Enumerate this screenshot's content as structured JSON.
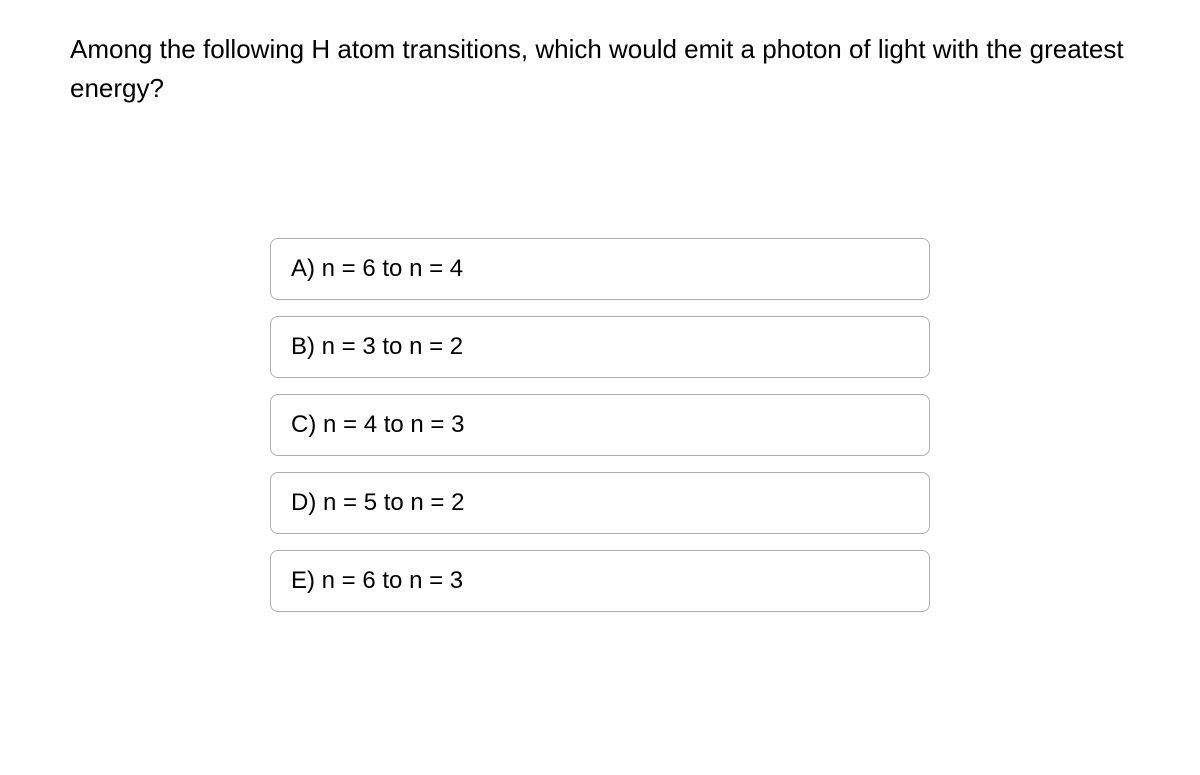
{
  "question": {
    "text": "Among the following H atom transitions, which would emit a photon of light with the greatest energy?"
  },
  "options": {
    "a": "A) n = 6 to n = 4",
    "b": "B) n = 3 to n = 2",
    "c": "C) n = 4 to n = 3",
    "d": "D) n = 5 to n = 2",
    "e": "E) n = 6 to n = 3"
  },
  "styling": {
    "background_color": "#ffffff",
    "text_color": "#000000",
    "border_color": "#b0b0b0",
    "border_radius": 8,
    "question_fontsize": 26,
    "option_fontsize": 24,
    "font_family": "Arial"
  }
}
